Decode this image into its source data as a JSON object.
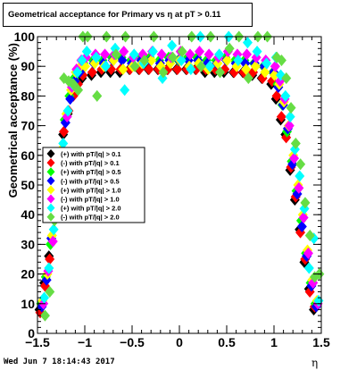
{
  "header": {
    "title": "Geometrical acceptance for Primary vs   η at pT > 0.11"
  },
  "footer": {
    "timestamp": "Wed Jun  7 18:14:43 2017"
  },
  "chart_data": {
    "type": "scatter",
    "title": "Geometrical acceptance for Primary vs   η at pT > 0.11",
    "xlabel": "η",
    "ylabel": "Geometrical acceptance (%)",
    "xlim": [
      -1.5,
      1.5
    ],
    "ylim": [
      0,
      100
    ],
    "xticks": [
      "−1.5",
      "−1",
      "−0.5",
      "0",
      "0.5",
      "1",
      "1.5"
    ],
    "yticks": [
      "0",
      "10",
      "20",
      "30",
      "40",
      "50",
      "60",
      "70",
      "80",
      "90",
      "100"
    ],
    "legend_position": "middle-left",
    "series": [
      {
        "name": "(+) with pT/|q| > 0.1",
        "color": "#000000",
        "x": [
          -1.45,
          -1.4,
          -1.35,
          -1.3,
          -1.25,
          -1.2,
          -1.15,
          -1.1,
          -1.05,
          -1.0,
          -0.9,
          -0.8,
          -0.7,
          -0.6,
          -0.5,
          -0.4,
          -0.3,
          -0.2,
          -0.1,
          0.0,
          0.1,
          0.2,
          0.3,
          0.4,
          0.5,
          0.6,
          0.7,
          0.8,
          0.9,
          1.0,
          1.05,
          1.1,
          1.15,
          1.2,
          1.25,
          1.3,
          1.35,
          1.4,
          1.45
        ],
        "values": [
          8,
          17,
          26,
          42,
          55,
          67,
          74,
          80,
          84,
          86,
          87,
          88,
          88,
          88,
          89,
          89,
          89,
          89,
          89,
          89,
          89,
          89,
          88,
          88,
          88,
          88,
          88,
          87,
          86,
          84,
          79,
          72,
          67,
          55,
          45,
          35,
          24,
          15,
          8
        ]
      },
      {
        "name": "(-) with pT/|q| > 0.1",
        "color": "#ff0000",
        "x": [
          -1.45,
          -1.4,
          -1.35,
          -1.3,
          -1.25,
          -1.2,
          -1.15,
          -1.1,
          -1.05,
          -1.0,
          -0.9,
          -0.8,
          -0.7,
          -0.6,
          -0.5,
          -0.4,
          -0.3,
          -0.2,
          -0.1,
          0.0,
          0.1,
          0.2,
          0.3,
          0.4,
          0.5,
          0.6,
          0.7,
          0.8,
          0.9,
          1.0,
          1.05,
          1.1,
          1.15,
          1.2,
          1.25,
          1.3,
          1.35,
          1.4,
          1.45
        ],
        "values": [
          7,
          16,
          25,
          40,
          54,
          68,
          75,
          80,
          84,
          87,
          88,
          89,
          89,
          89,
          89,
          89,
          89,
          89,
          89,
          89,
          89,
          89,
          89,
          89,
          89,
          88,
          88,
          88,
          86,
          85,
          80,
          73,
          66,
          56,
          46,
          34,
          25,
          14,
          9
        ]
      },
      {
        "name": "(+) with pT/|q| > 0.5",
        "color": "#00ff00",
        "x": [
          -1.45,
          -1.4,
          -1.35,
          -1.3,
          -1.25,
          -1.2,
          -1.15,
          -1.1,
          -1.05,
          -1.0,
          -0.9,
          -0.8,
          -0.7,
          -0.6,
          -0.5,
          -0.4,
          -0.3,
          -0.2,
          -0.1,
          0.0,
          0.1,
          0.2,
          0.3,
          0.4,
          0.5,
          0.6,
          0.7,
          0.8,
          0.9,
          1.0,
          1.05,
          1.1,
          1.15,
          1.2,
          1.25,
          1.3,
          1.35,
          1.4,
          1.45
        ],
        "values": [
          10,
          19,
          30,
          46,
          60,
          72,
          80,
          86,
          89,
          91,
          92,
          92,
          93,
          93,
          92,
          93,
          93,
          92,
          93,
          92,
          93,
          93,
          92,
          92,
          93,
          92,
          92,
          91,
          90,
          88,
          84,
          77,
          68,
          58,
          48,
          38,
          27,
          17,
          10
        ]
      },
      {
        "name": "(-) with pT/|q| > 0.5",
        "color": "#0000ff",
        "x": [
          -1.45,
          -1.4,
          -1.35,
          -1.3,
          -1.25,
          -1.2,
          -1.15,
          -1.1,
          -1.05,
          -1.0,
          -0.9,
          -0.8,
          -0.7,
          -0.6,
          -0.5,
          -0.4,
          -0.3,
          -0.2,
          -0.1,
          0.0,
          0.1,
          0.2,
          0.3,
          0.4,
          0.5,
          0.6,
          0.7,
          0.8,
          0.9,
          1.0,
          1.05,
          1.1,
          1.15,
          1.2,
          1.25,
          1.3,
          1.35,
          1.4,
          1.45
        ],
        "values": [
          9,
          18,
          32,
          45,
          58,
          71,
          79,
          85,
          88,
          90,
          91,
          91,
          92,
          92,
          91,
          92,
          92,
          91,
          92,
          92,
          92,
          92,
          91,
          91,
          92,
          91,
          91,
          91,
          90,
          88,
          83,
          77,
          69,
          57,
          47,
          36,
          26,
          16,
          9
        ]
      },
      {
        "name": "(+) with pT/|q| > 1.0",
        "color": "#ffff00",
        "x": [
          -1.45,
          -1.4,
          -1.35,
          -1.3,
          -1.25,
          -1.2,
          -1.15,
          -1.1,
          -1.05,
          -1.0,
          -0.9,
          -0.8,
          -0.7,
          -0.6,
          -0.5,
          -0.4,
          -0.3,
          -0.2,
          -0.1,
          0.0,
          0.1,
          0.2,
          0.3,
          0.4,
          0.5,
          0.6,
          0.7,
          0.8,
          0.9,
          1.0,
          1.05,
          1.1,
          1.15,
          1.2,
          1.25,
          1.3,
          1.35,
          1.4,
          1.45
        ],
        "values": [
          11,
          20,
          33,
          48,
          62,
          74,
          82,
          88,
          90,
          90,
          91,
          90,
          92,
          89,
          90,
          91,
          92,
          90,
          91,
          92,
          90,
          91,
          89,
          91,
          92,
          90,
          89,
          90,
          88,
          87,
          84,
          78,
          70,
          60,
          50,
          40,
          28,
          18,
          11
        ]
      },
      {
        "name": "(-) with pT/|q| > 1.0",
        "color": "#ff00ff",
        "x": [
          -1.45,
          -1.4,
          -1.35,
          -1.3,
          -1.25,
          -1.2,
          -1.15,
          -1.1,
          -1.05,
          -1.0,
          -0.9,
          -0.8,
          -0.7,
          -0.6,
          -0.5,
          -0.4,
          -0.3,
          -0.2,
          -0.1,
          0.0,
          0.1,
          0.2,
          0.3,
          0.4,
          0.5,
          0.6,
          0.7,
          0.8,
          0.9,
          1.0,
          1.05,
          1.1,
          1.15,
          1.2,
          1.25,
          1.3,
          1.35,
          1.4,
          1.45
        ],
        "values": [
          10,
          21,
          31,
          47,
          61,
          73,
          83,
          89,
          92,
          93,
          94,
          94,
          94,
          95,
          93,
          94,
          95,
          94,
          93,
          95,
          94,
          95,
          94,
          93,
          95,
          94,
          94,
          93,
          92,
          90,
          85,
          79,
          70,
          59,
          49,
          39,
          27,
          17,
          10
        ]
      },
      {
        "name": "(+) with pT/|q| > 2.0",
        "color": "#00ffff",
        "x": [
          -1.45,
          -1.4,
          -1.35,
          -1.3,
          -1.25,
          -1.2,
          -1.15,
          -1.1,
          -1.05,
          -1.0,
          -0.9,
          -0.8,
          -0.7,
          -0.6,
          -0.5,
          -0.4,
          -0.3,
          -0.2,
          -0.1,
          0.0,
          0.1,
          0.2,
          0.3,
          0.4,
          0.5,
          0.6,
          0.7,
          0.8,
          0.9,
          1.0,
          1.05,
          1.1,
          1.15,
          1.2,
          1.25,
          1.3,
          1.35,
          1.4,
          1.45
        ],
        "values": [
          12,
          22,
          35,
          50,
          64,
          75,
          84,
          88,
          92,
          95,
          93,
          90,
          96,
          82,
          94,
          91,
          95,
          86,
          97,
          92,
          89,
          100,
          90,
          94,
          100,
          92,
          98,
          95,
          91,
          93,
          87,
          80,
          73,
          62,
          53,
          42,
          22,
          32,
          11
        ]
      },
      {
        "name": "(-) with pT/|q| > 2.0",
        "color": "#66dd44",
        "x": [
          -1.45,
          -1.4,
          -1.35,
          -1.3,
          -1.25,
          -1.2,
          -1.15,
          -1.1,
          -1.05,
          -1.0,
          -0.9,
          -0.8,
          -0.7,
          -0.6,
          -0.5,
          -0.4,
          -0.3,
          -0.2,
          -0.1,
          0.0,
          0.1,
          0.2,
          0.3,
          0.4,
          0.5,
          0.6,
          0.7,
          0.8,
          0.9,
          1.0,
          1.05,
          1.1,
          1.15,
          1.2,
          1.25,
          1.3,
          1.35,
          1.4,
          1.45
        ],
        "values": [
          6,
          14,
          38,
          45,
          86,
          85,
          84,
          82,
          100,
          100,
          80,
          100,
          94,
          100,
          90,
          92,
          100,
          88,
          93,
          95,
          100,
          90,
          100,
          88,
          96,
          100,
          86,
          100,
          100,
          93,
          92,
          86,
          76,
          64,
          57,
          44,
          33,
          19,
          20
        ]
      }
    ]
  }
}
